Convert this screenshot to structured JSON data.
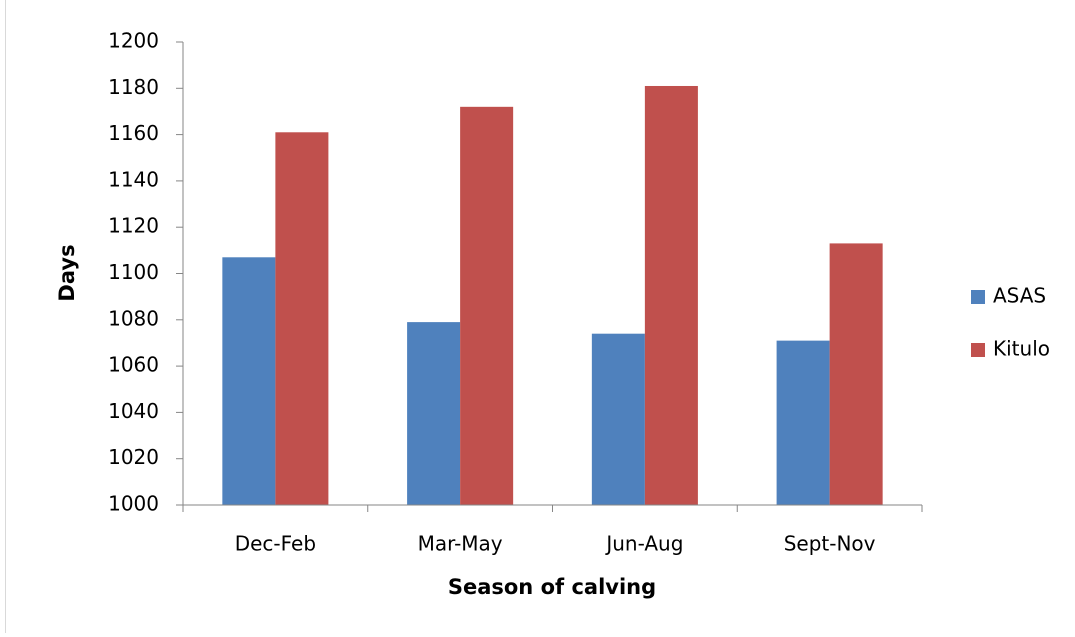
{
  "chart_data": {
    "type": "bar",
    "x_label": "Season of calving",
    "y_label": "Days",
    "categories": [
      "Dec-Feb",
      "Mar-May",
      "Jun-Aug",
      "Sept-Nov"
    ],
    "series": [
      {
        "name": "ASAS",
        "color": "#4f81bd",
        "values": [
          1107,
          1079,
          1074,
          1071
        ]
      },
      {
        "name": "Kitulo",
        "color": "#c0504d",
        "values": [
          1161,
          1172,
          1181,
          1113
        ]
      }
    ],
    "ylim": [
      1000,
      1200
    ],
    "yticks": [
      1000,
      1020,
      1040,
      1060,
      1080,
      1100,
      1120,
      1140,
      1160,
      1180,
      1200
    ],
    "legend": "right"
  }
}
